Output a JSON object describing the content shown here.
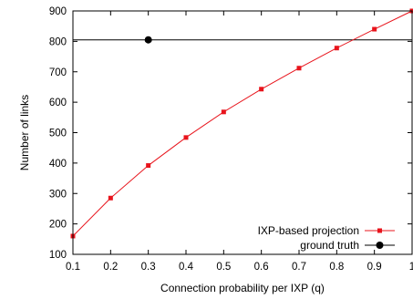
{
  "chart_data": {
    "type": "line",
    "title": "",
    "xlabel": "Connection probability per IXP (q)",
    "ylabel": "Number of links",
    "xlim": [
      0.1,
      1.0
    ],
    "ylim": [
      100,
      900
    ],
    "xticks": [
      0.1,
      0.2,
      0.3,
      0.4,
      0.5,
      0.6,
      0.7,
      0.8,
      0.9,
      1.0
    ],
    "xtick_labels": [
      "0.1",
      "0.2",
      "0.3",
      "0.4",
      "0.5",
      "0.6",
      "0.7",
      "0.8",
      "0.9",
      "1"
    ],
    "yticks": [
      100,
      200,
      300,
      400,
      500,
      600,
      700,
      800,
      900
    ],
    "ytick_labels": [
      "100",
      "200",
      "300",
      "400",
      "500",
      "600",
      "700",
      "800",
      "900"
    ],
    "grid": false,
    "legend_position": "bottom-right",
    "series": [
      {
        "name": "IXP-based projection",
        "color": "#e8141c",
        "marker": "square",
        "x": [
          0.1,
          0.2,
          0.3,
          0.4,
          0.5,
          0.6,
          0.7,
          0.8,
          0.9,
          1.0
        ],
        "y": [
          160,
          285,
          392,
          484,
          568,
          643,
          712,
          778,
          840,
          900
        ]
      },
      {
        "name": "ground truth",
        "color": "#000000",
        "marker": "circle",
        "x": [
          0.3
        ],
        "y": [
          805
        ],
        "reference_line_y": 805
      }
    ]
  }
}
